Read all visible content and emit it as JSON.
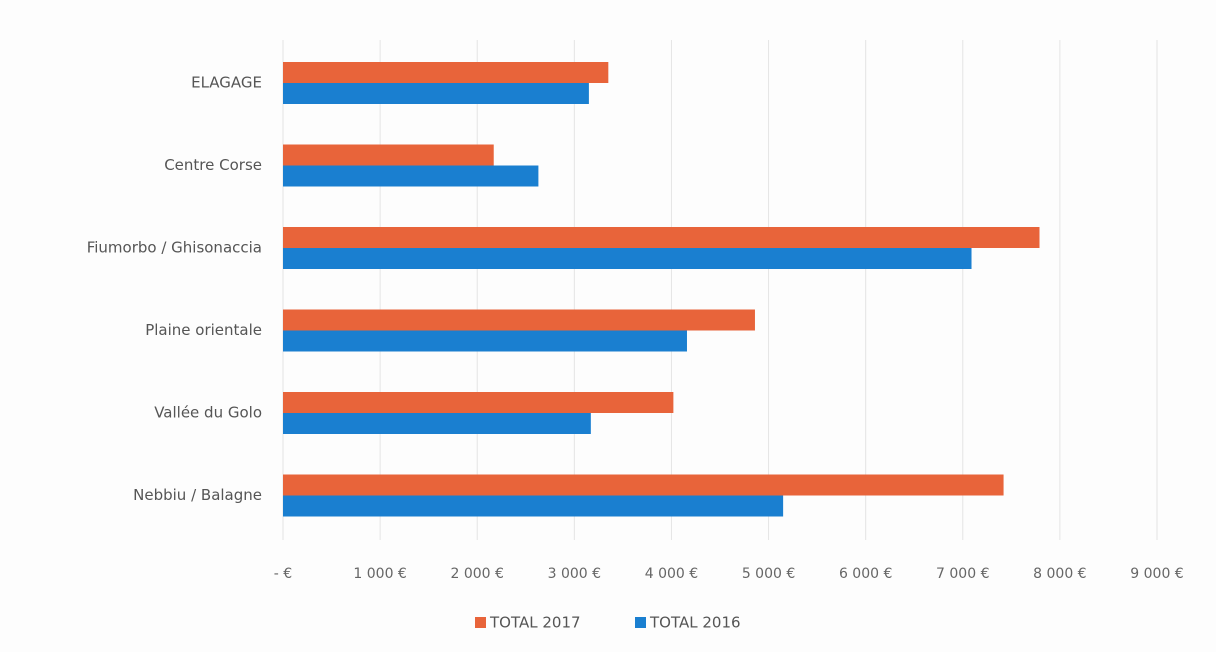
{
  "chart_data": {
    "type": "bar",
    "orientation": "horizontal",
    "categories": [
      "ELAGAGE",
      "Centre Corse",
      "Fiumorbo / Ghisonaccia",
      "Plaine orientale",
      "Vallée du Golo",
      "Nebbiu / Balagne"
    ],
    "series": [
      {
        "name": "TOTAL 2017",
        "color": "#e8643a",
        "values": [
          3350,
          2170,
          7790,
          4860,
          4020,
          7420
        ]
      },
      {
        "name": "TOTAL 2016",
        "color": "#1a7fd0",
        "values": [
          3150,
          2630,
          7090,
          4160,
          3170,
          5150
        ]
      }
    ],
    "xlim": [
      0,
      9000
    ],
    "x_ticks": [
      0,
      1000,
      2000,
      3000,
      4000,
      5000,
      6000,
      7000,
      8000,
      9000
    ],
    "x_tick_labels": [
      "-   €",
      "1 000 €",
      "2 000 €",
      "3 000 €",
      "4 000 €",
      "5 000 €",
      "6 000 €",
      "7 000 €",
      "8 000 €",
      "9 000 €"
    ],
    "grid": true,
    "legend_position": "bottom-center",
    "title": "",
    "xlabel": "",
    "ylabel": ""
  }
}
